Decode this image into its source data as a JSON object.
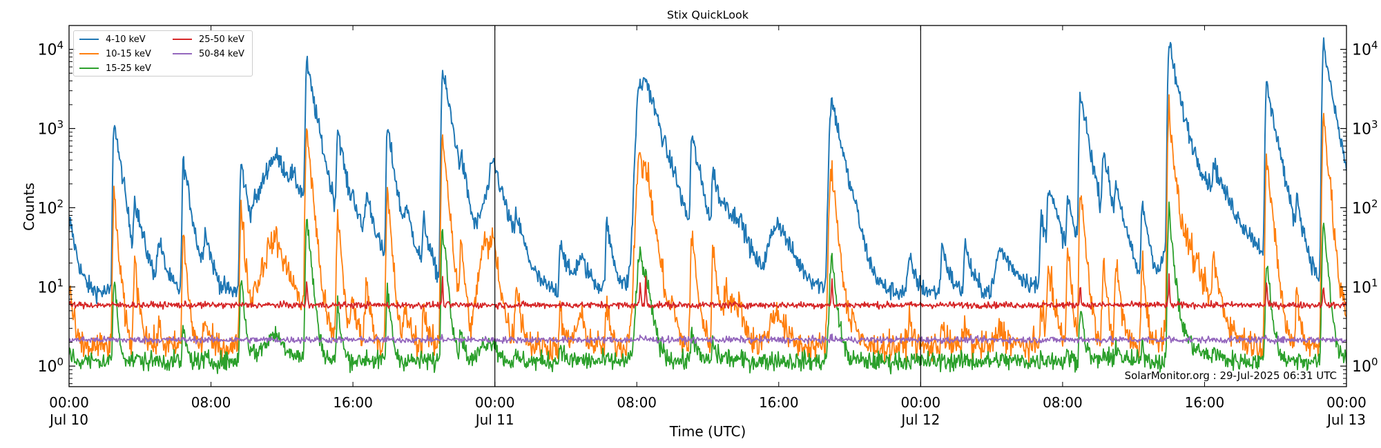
{
  "chart_data": {
    "type": "line",
    "title": "Stix QuickLook",
    "xlabel": "Time (UTC)",
    "ylabel": "Counts",
    "yscale": "log",
    "ylim": [
      0.55,
      20000
    ],
    "xlim_hours": [
      0,
      72
    ],
    "grid": false,
    "legend_position": "upper left",
    "x_ticks": [
      {
        "hour": 0,
        "label": "00:00",
        "sublabel": "Jul 10"
      },
      {
        "hour": 8,
        "label": "08:00",
        "sublabel": ""
      },
      {
        "hour": 16,
        "label": "16:00",
        "sublabel": ""
      },
      {
        "hour": 24,
        "label": "00:00",
        "sublabel": "Jul 11"
      },
      {
        "hour": 32,
        "label": "08:00",
        "sublabel": ""
      },
      {
        "hour": 40,
        "label": "16:00",
        "sublabel": ""
      },
      {
        "hour": 48,
        "label": "00:00",
        "sublabel": "Jul 12"
      },
      {
        "hour": 56,
        "label": "08:00",
        "sublabel": ""
      },
      {
        "hour": 64,
        "label": "16:00",
        "sublabel": ""
      },
      {
        "hour": 72,
        "label": "00:00",
        "sublabel": "Jul 13"
      }
    ],
    "y_ticks": [
      {
        "value": 1,
        "base": "10",
        "exp": "0"
      },
      {
        "value": 10,
        "base": "10",
        "exp": "1"
      },
      {
        "value": 100,
        "base": "10",
        "exp": "2"
      },
      {
        "value": 1000,
        "base": "10",
        "exp": "3"
      },
      {
        "value": 10000,
        "base": "10",
        "exp": "4"
      }
    ],
    "day_boundaries_hours": [
      24,
      48
    ],
    "series": [
      {
        "name": "4-10 keV",
        "color": "#1f77b4",
        "baseline": 8.5,
        "noise": 0.06
      },
      {
        "name": "10-15 keV",
        "color": "#ff7f0e",
        "baseline": 1.75,
        "noise": 0.09
      },
      {
        "name": "15-25 keV",
        "color": "#2ca02c",
        "baseline": 1.15,
        "noise": 0.06
      },
      {
        "name": "25-50 keV",
        "color": "#d62728",
        "baseline": 5.9,
        "noise": 0.02
      },
      {
        "name": "50-84 keV",
        "color": "#9467bd",
        "baseline": 2.15,
        "noise": 0.02
      }
    ],
    "flares": [
      {
        "hour": 0.05,
        "peak": [
          70,
          10,
          1.6
        ],
        "rise": 0.05,
        "decay": 0.3
      },
      {
        "hour": 2.55,
        "peak": [
          1300,
          170,
          14
        ],
        "rise": 0.05,
        "decay": 0.25
      },
      {
        "hour": 3.0,
        "peak": [
          55,
          6,
          1.3
        ],
        "rise": 0.05,
        "decay": 0.3
      },
      {
        "hour": 3.7,
        "peak": [
          110,
          20,
          1.3
        ],
        "rise": 0.05,
        "decay": 0.4
      },
      {
        "hour": 5.1,
        "peak": [
          35,
          3,
          1.2
        ],
        "rise": 0.1,
        "decay": 0.3
      },
      {
        "hour": 6.45,
        "peak": [
          380,
          45,
          3
        ],
        "rise": 0.05,
        "decay": 0.3
      },
      {
        "hour": 7.7,
        "peak": [
          45,
          4,
          1.2
        ],
        "rise": 0.1,
        "decay": 0.3
      },
      {
        "hour": 9.7,
        "peak": [
          360,
          110,
          14
        ],
        "rise": 0.05,
        "decay": 0.3
      },
      {
        "hour": 10.4,
        "peak": [
          55,
          6,
          1.3
        ],
        "rise": 0.05,
        "decay": 0.4
      },
      {
        "hour": 11.7,
        "peak": [
          440,
          40,
          2.5
        ],
        "rise": 0.6,
        "decay": 1.2
      },
      {
        "hour": 12.6,
        "peak": [
          60,
          5,
          1.2
        ],
        "rise": 0.1,
        "decay": 0.3
      },
      {
        "hour": 13.4,
        "peak": [
          6500,
          1050,
          80
        ],
        "rise": 0.05,
        "decay": 0.35
      },
      {
        "hour": 14.3,
        "peak": [
          33,
          3,
          1.2
        ],
        "rise": 0.8,
        "decay": 0.8
      },
      {
        "hour": 15.15,
        "peak": [
          960,
          85,
          6
        ],
        "rise": 0.05,
        "decay": 0.3
      },
      {
        "hour": 16.0,
        "peak": [
          80,
          6,
          1.2
        ],
        "rise": 0.1,
        "decay": 0.5
      },
      {
        "hour": 16.8,
        "peak": [
          120,
          10,
          1.3
        ],
        "rise": 0.1,
        "decay": 0.4
      },
      {
        "hour": 17.95,
        "peak": [
          1000,
          150,
          10
        ],
        "rise": 0.05,
        "decay": 0.3
      },
      {
        "hour": 19.0,
        "peak": [
          70,
          5,
          1.2
        ],
        "rise": 0.1,
        "decay": 0.5
      },
      {
        "hour": 20.0,
        "peak": [
          60,
          6,
          1.2
        ],
        "rise": 0.05,
        "decay": 0.3
      },
      {
        "hour": 21.05,
        "peak": [
          5200,
          850,
          60
        ],
        "rise": 0.05,
        "decay": 0.35
      },
      {
        "hour": 21.25,
        "peak": [
          200,
          50,
          4
        ],
        "rise": 0.05,
        "decay": 0.3
      },
      {
        "hour": 22.1,
        "peak": [
          190,
          40,
          3
        ],
        "rise": 0.05,
        "decay": 0.3
      },
      {
        "hour": 23.5,
        "peak": [
          110,
          35,
          2
        ],
        "rise": 0.3,
        "decay": 0.5
      },
      {
        "hour": 23.95,
        "peak": [
          330,
          35,
          2
        ],
        "rise": 0.2,
        "decay": 0.5
      },
      {
        "hour": 25.2,
        "peak": [
          55,
          12,
          1.3
        ],
        "rise": 0.05,
        "decay": 0.4
      },
      {
        "hour": 27.7,
        "peak": [
          40,
          5,
          2
        ],
        "rise": 0.05,
        "decay": 0.3
      },
      {
        "hour": 28.9,
        "peak": [
          22,
          4,
          1.2
        ],
        "rise": 0.3,
        "decay": 0.5
      },
      {
        "hour": 30.3,
        "peak": [
          60,
          6,
          1.2
        ],
        "rise": 0.05,
        "decay": 0.3
      },
      {
        "hour": 31.9,
        "peak": [
          30,
          5,
          1.3
        ],
        "rise": 0.2,
        "decay": 0.3
      },
      {
        "hour": 32.2,
        "peak": [
          3800,
          430,
          25
        ],
        "rise": 0.15,
        "decay": 0.5
      },
      {
        "hour": 32.5,
        "peak": [
          2300,
          240,
          8
        ],
        "rise": 0.1,
        "decay": 0.6
      },
      {
        "hour": 34.0,
        "peak": [
          60,
          6,
          1.2
        ],
        "rise": 0.05,
        "decay": 0.3
      },
      {
        "hour": 35.1,
        "peak": [
          750,
          45,
          3
        ],
        "rise": 0.05,
        "decay": 0.4
      },
      {
        "hour": 36.3,
        "peak": [
          260,
          30,
          2
        ],
        "rise": 0.05,
        "decay": 0.4
      },
      {
        "hour": 37.1,
        "peak": [
          70,
          8,
          1.3
        ],
        "rise": 0.2,
        "decay": 0.5
      },
      {
        "hour": 37.8,
        "peak": [
          55,
          6,
          1.2
        ],
        "rise": 0.3,
        "decay": 0.6
      },
      {
        "hour": 40.0,
        "peak": [
          65,
          5,
          1.2
        ],
        "rise": 0.4,
        "decay": 0.7
      },
      {
        "hour": 43.0,
        "peak": [
          2300,
          290,
          22
        ],
        "rise": 0.1,
        "decay": 0.4
      },
      {
        "hour": 44.2,
        "peak": [
          40,
          5,
          1.2
        ],
        "rise": 0.05,
        "decay": 0.3
      },
      {
        "hour": 47.4,
        "peak": [
          22,
          4,
          1.2
        ],
        "rise": 0.1,
        "decay": 0.3
      },
      {
        "hour": 49.2,
        "peak": [
          35,
          4,
          1.2
        ],
        "rise": 0.05,
        "decay": 0.3
      },
      {
        "hour": 50.5,
        "peak": [
          35,
          4,
          1.2
        ],
        "rise": 0.05,
        "decay": 0.3
      },
      {
        "hour": 52.5,
        "peak": [
          30,
          3,
          1.2
        ],
        "rise": 0.2,
        "decay": 0.8
      },
      {
        "hour": 54.8,
        "peak": [
          80,
          7,
          1.3
        ],
        "rise": 0.05,
        "decay": 0.3
      },
      {
        "hour": 55.2,
        "peak": [
          180,
          18,
          1.3
        ],
        "rise": 0.05,
        "decay": 0.5
      },
      {
        "hour": 56.3,
        "peak": [
          120,
          30,
          1.5
        ],
        "rise": 0.05,
        "decay": 0.3
      },
      {
        "hour": 57.0,
        "peak": [
          2700,
          170,
          6
        ],
        "rise": 0.05,
        "decay": 0.35
      },
      {
        "hour": 58.3,
        "peak": [
          500,
          22,
          1.5
        ],
        "rise": 0.05,
        "decay": 0.3
      },
      {
        "hour": 59.0,
        "peak": [
          160,
          20,
          2
        ],
        "rise": 0.05,
        "decay": 0.4
      },
      {
        "hour": 60.5,
        "peak": [
          110,
          22,
          1.8
        ],
        "rise": 0.05,
        "decay": 0.3
      },
      {
        "hour": 62.0,
        "peak": [
          12000,
          1900,
          95
        ],
        "rise": 0.05,
        "decay": 0.35
      },
      {
        "hour": 63.0,
        "peak": [
          440,
          38,
          2.2
        ],
        "rise": 0.5,
        "decay": 1.4
      },
      {
        "hour": 64.5,
        "peak": [
          210,
          20,
          1.5
        ],
        "rise": 0.05,
        "decay": 0.5
      },
      {
        "hour": 67.5,
        "peak": [
          3600,
          450,
          22
        ],
        "rise": 0.05,
        "decay": 0.35
      },
      {
        "hour": 68.0,
        "peak": [
          170,
          15,
          1.5
        ],
        "rise": 0.05,
        "decay": 0.4
      },
      {
        "hour": 69.2,
        "peak": [
          100,
          10,
          1.3
        ],
        "rise": 0.05,
        "decay": 0.3
      },
      {
        "hour": 70.7,
        "peak": [
          11000,
          1600,
          70
        ],
        "rise": 0.05,
        "decay": 0.35
      },
      {
        "hour": 71.8,
        "peak": [
          75,
          5,
          1.3
        ],
        "rise": 0.05,
        "decay": 0.3
      }
    ]
  },
  "legend": {
    "items": [
      {
        "label": "4-10 keV",
        "color": "#1f77b4"
      },
      {
        "label": "10-15 keV",
        "color": "#ff7f0e"
      },
      {
        "label": "15-25 keV",
        "color": "#2ca02c"
      },
      {
        "label": "25-50 keV",
        "color": "#d62728"
      },
      {
        "label": "50-84 keV",
        "color": "#9467bd"
      }
    ]
  },
  "watermark": "SolarMonitor.org : 29-Jul-2025 06:31 UTC"
}
